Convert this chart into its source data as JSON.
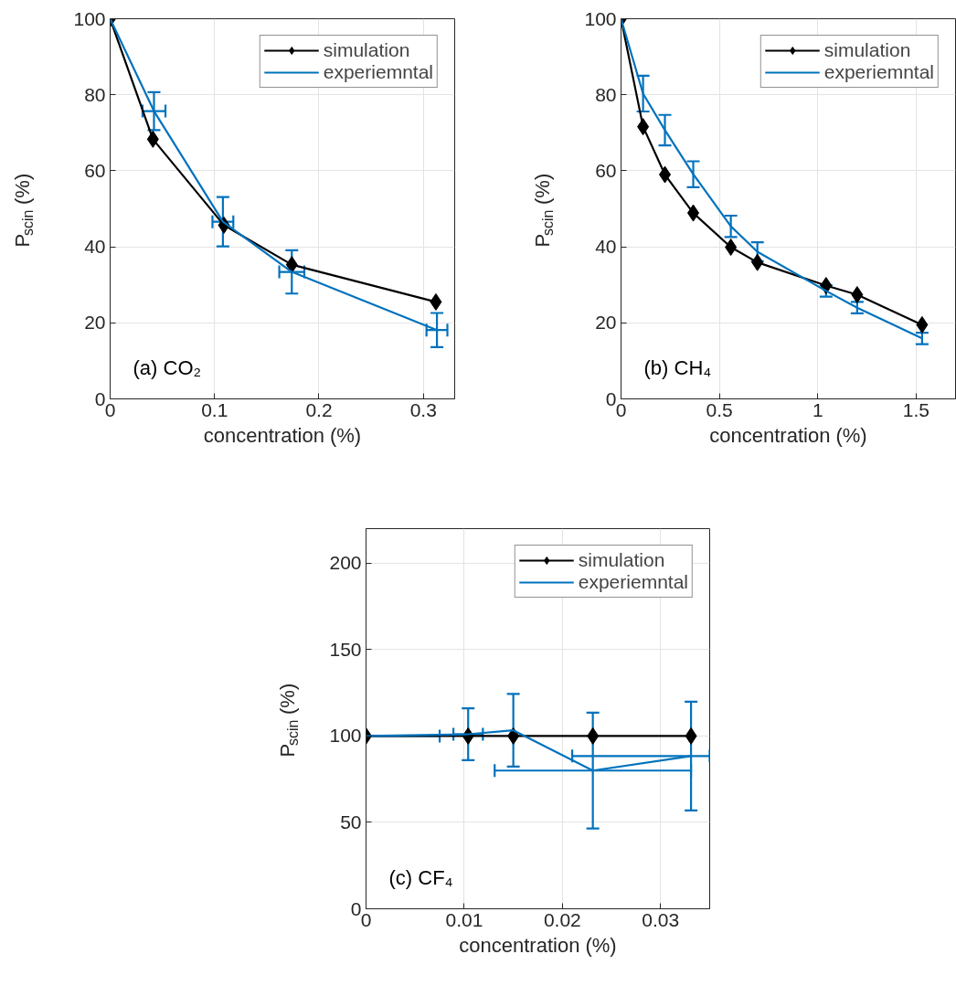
{
  "chart_data": [
    {
      "type": "line",
      "xlabel": "concentration (%)",
      "ylabel": "P$_{scin}$(%)",
      "annotations": [
        "(a) CO₂"
      ],
      "xlim": [
        0,
        0.33
      ],
      "ylim": [
        0,
        100
      ],
      "xticks": [
        0,
        0.1,
        0.2,
        0.3
      ],
      "yticks": [
        0,
        20,
        40,
        60,
        80,
        100
      ],
      "grid": true,
      "legend": "top right",
      "series": [
        {
          "name": "simulation",
          "color": "#000000",
          "marker": "diamond",
          "x": [
            0,
            0.041,
            0.109,
            0.174,
            0.312
          ],
          "values": [
            100,
            68.3,
            45.7,
            35.3,
            25.5
          ]
        },
        {
          "name": "experiemntal",
          "color": "#0072bd",
          "marker": "none",
          "x": [
            0,
            0.042,
            0.108,
            0.174,
            0.313
          ],
          "values": [
            100,
            75.7,
            46.6,
            33.4,
            18.1
          ],
          "errors": [
            null,
            5,
            6.5,
            5.7,
            4.5
          ],
          "xerrors": [
            null,
            0.011,
            0.01,
            0.012,
            0.01
          ]
        }
      ]
    },
    {
      "type": "line",
      "xlabel": "concentration (%)",
      "ylabel": "P$_{scin}$(%)",
      "annotations": [
        "(b) CH₄"
      ],
      "xlim": [
        0,
        1.7
      ],
      "ylim": [
        0,
        100
      ],
      "xticks": [
        0,
        0.5,
        1,
        1.5
      ],
      "yticks": [
        0,
        20,
        40,
        60,
        80,
        100
      ],
      "grid": true,
      "legend": "top right",
      "series": [
        {
          "name": "simulation",
          "color": "#000000",
          "marker": "diamond",
          "x": [
            0,
            0.112,
            0.223,
            0.367,
            0.558,
            0.693,
            1.042,
            1.2,
            1.53
          ],
          "values": [
            100,
            71.6,
            59,
            48.9,
            39.9,
            35.9,
            29.8,
            27.4,
            19.5
          ]
        },
        {
          "name": "experiemntal",
          "color": "#0072bd",
          "marker": "none",
          "x": [
            0,
            0.112,
            0.223,
            0.367,
            0.558,
            0.693,
            1.042,
            1.2,
            1.53
          ],
          "values": [
            100,
            80.3,
            70.7,
            59.1,
            45.4,
            38.7,
            28.4,
            24,
            15.9
          ],
          "errors": [
            null,
            4.7,
            4,
            3.4,
            2.8,
            2.5,
            1.5,
            1.5,
            1.5
          ]
        }
      ]
    },
    {
      "type": "line",
      "xlabel": "concentration (%)",
      "ylabel": "P$_{scin}$(%)",
      "annotations": [
        "(c) CF₄"
      ],
      "xlim": [
        0,
        0.035
      ],
      "ylim": [
        0,
        220
      ],
      "xticks": [
        0,
        0.01,
        0.02,
        0.03
      ],
      "yticks": [
        0,
        50,
        100,
        150,
        200
      ],
      "grid": true,
      "legend": "top right",
      "series": [
        {
          "name": "simulation",
          "color": "#000000",
          "marker": "diamond",
          "x": [
            0,
            0.0104,
            0.015,
            0.0231,
            0.0331
          ],
          "values": [
            100,
            100,
            100,
            100,
            100
          ]
        },
        {
          "name": "experiemntal",
          "color": "#0072bd",
          "marker": "none",
          "x": [
            0,
            0.0104,
            0.015,
            0.0231,
            0.0331
          ],
          "values": [
            100,
            101,
            103.3,
            80,
            88.4
          ],
          "errors": [
            null,
            15,
            21,
            33.5,
            31.5
          ],
          "xerrors": [
            [
              0,
              0.0075
            ],
            0.0015,
            null,
            0.01,
            [
              0.021,
              0.035
            ]
          ]
        }
      ]
    }
  ]
}
